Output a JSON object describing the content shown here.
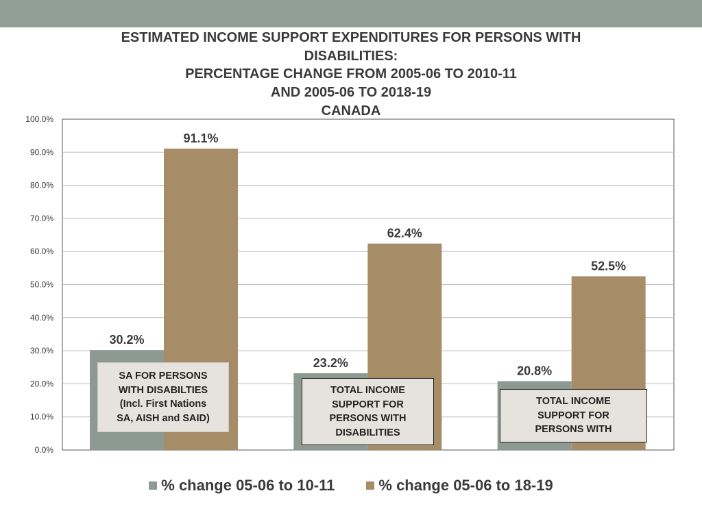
{
  "colors": {
    "band": "#919f98",
    "series1": "#8c9a93",
    "series2": "#a78c68",
    "grid": "#bdbdbd",
    "axis": "#555555",
    "text": "#3a3a3a"
  },
  "title_lines": [
    "ESTIMATED INCOME SUPPORT EXPENDITURES FOR PERSONS WITH",
    "DISABILITIES:",
    "PERCENTAGE CHANGE FROM 2005-06 TO 2010-11",
    "AND 2005-06 TO 2018-19",
    "CANADA"
  ],
  "chart_data": {
    "type": "bar",
    "title": "ESTIMATED INCOME SUPPORT EXPENDITURES FOR PERSONS WITH DISABILITIES: PERCENTAGE CHANGE FROM 2005-06 TO 2010-11 AND 2005-06 TO 2018-19 CANADA",
    "categories": [
      "SA FOR PERSONS WITH DISABILTIES (Incl. First Nations SA, AISH and SAID)",
      "TOTAL INCOME SUPPORT FOR PERSONS WITH DISABILITIES",
      "TOTAL INCOME SUPPORT FOR PERSONS WITH"
    ],
    "series": [
      {
        "name": "% change 05-06 to 10-11",
        "values": [
          30.2,
          23.2,
          20.8
        ],
        "labels": [
          "30.2%",
          "23.2%",
          "20.8%"
        ]
      },
      {
        "name": "% change 05-06 to 18-19",
        "values": [
          91.1,
          62.4,
          52.5
        ],
        "labels": [
          "91.1%",
          "62.4%",
          "52.5%"
        ]
      }
    ],
    "ylim": [
      0,
      100
    ],
    "yticks": [
      0,
      10,
      20,
      30,
      40,
      50,
      60,
      70,
      80,
      90,
      100
    ],
    "ytick_labels": [
      "0.0%",
      "10.0%",
      "20.0%",
      "30.0%",
      "40.0%",
      "50.0%",
      "60.0%",
      "70.0%",
      "80.0%",
      "90.0%",
      "100.0%"
    ],
    "grid": true,
    "legend_position": "bottom"
  },
  "category_boxes": [
    "SA FOR PERSONS\nWITH DISABILTIES\n(Incl. First Nations\nSA, AISH and SAID)",
    "TOTAL INCOME\nSUPPORT FOR\nPERSONS WITH\nDISABILITIES",
    "TOTAL INCOME\nSUPPORT FOR\nPERSONS WITH"
  ],
  "legend": {
    "item1": "% change 05-06 to 10-11",
    "item2": "% change 05-06 to 18-19"
  }
}
